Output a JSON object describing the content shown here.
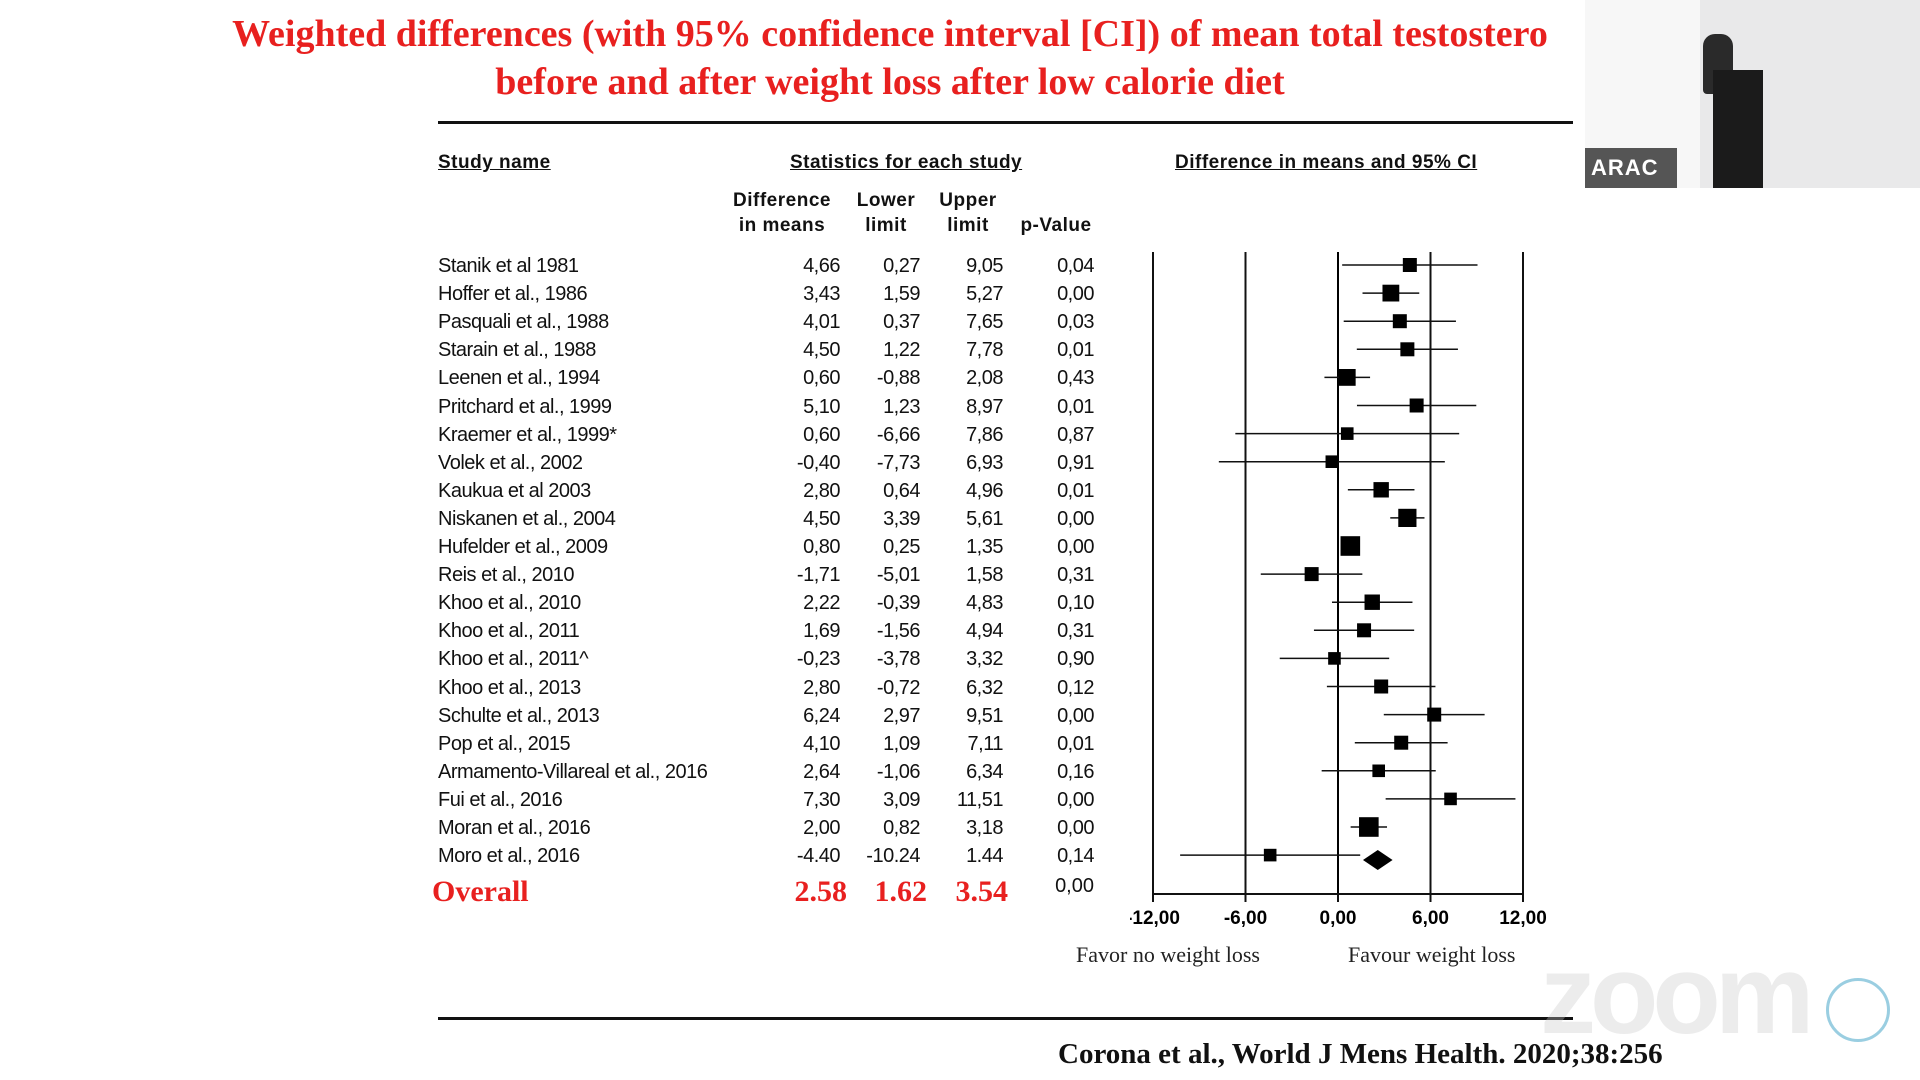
{
  "title_line1": "Weighted differences (with 95% confidence interval [CI]) of mean total testostero",
  "title_line2": "before and after weight loss after low calorie diet",
  "headers": {
    "study_name": "Study name",
    "statistics": "Statistics for each study",
    "plot": "Difference in means and 95% CI",
    "diff": "Difference\nin means",
    "lower": "Lower\nlimit",
    "upper": "Upper\nlimit",
    "pvalue": "p-Value"
  },
  "overall": {
    "label": "Overall",
    "diff": "2.58",
    "lower": "1.62",
    "upper": "3.54",
    "p": "0,00"
  },
  "favor_left": "Favor no weight loss",
  "favor_right": "Favour weight loss",
  "citation": "Corona et al., World J Mens Health. 2020;38:256",
  "thumbnail_label": "ARAC",
  "watermark": "zoom",
  "colors": {
    "title": "#e8201f",
    "overall": "#e8201f",
    "marker": "#000000"
  },
  "chart_data": {
    "type": "forest",
    "xlim": [
      -12,
      12
    ],
    "xticks": [
      "-12,00",
      "-6,00",
      "0,00",
      "6,00",
      "12,00"
    ],
    "studies": [
      {
        "name": "Stanik et al 1981",
        "diff": "4,66",
        "lower": "0,27",
        "upper": "9,05",
        "p": "0,04",
        "d": 4.66,
        "l": 0.27,
        "u": 9.05,
        "w": 1.0
      },
      {
        "name": "Hoffer et al., 1986",
        "diff": "3,43",
        "lower": "1,59",
        "upper": "5,27",
        "p": "0,00",
        "d": 3.43,
        "l": 1.59,
        "u": 5.27,
        "w": 1.2
      },
      {
        "name": "Pasquali et al., 1988",
        "diff": "4,01",
        "lower": "0,37",
        "upper": "7,65",
        "p": "0,03",
        "d": 4.01,
        "l": 0.37,
        "u": 7.65,
        "w": 1.0
      },
      {
        "name": "Starain et al., 1988",
        "diff": "4,50",
        "lower": "1,22",
        "upper": "7,78",
        "p": "0,01",
        "d": 4.5,
        "l": 1.22,
        "u": 7.78,
        "w": 1.0
      },
      {
        "name": "Leenen et al., 1994",
        "diff": "0,60",
        "lower": "-0,88",
        "upper": "2,08",
        "p": "0,43",
        "d": 0.6,
        "l": -0.88,
        "u": 2.08,
        "w": 1.2
      },
      {
        "name": "Pritchard et al., 1999",
        "diff": "5,10",
        "lower": "1,23",
        "upper": "8,97",
        "p": "0,01",
        "d": 5.1,
        "l": 1.23,
        "u": 8.97,
        "w": 1.0
      },
      {
        "name": "Kraemer  et al., 1999*",
        "diff": "0,60",
        "lower": "-6,66",
        "upper": "7,86",
        "p": "0,87",
        "d": 0.6,
        "l": -6.66,
        "u": 7.86,
        "w": 0.9
      },
      {
        "name": "Volek et al., 2002",
        "diff": "-0,40",
        "lower": "-7,73",
        "upper": "6,93",
        "p": "0,91",
        "d": -0.4,
        "l": -7.73,
        "u": 6.93,
        "w": 0.9
      },
      {
        "name": "Kaukua et al 2003",
        "diff": "2,80",
        "lower": "0,64",
        "upper": "4,96",
        "p": "0,01",
        "d": 2.8,
        "l": 0.64,
        "u": 4.96,
        "w": 1.1
      },
      {
        "name": "Niskanen et al., 2004",
        "diff": "4,50",
        "lower": "3,39",
        "upper": "5,61",
        "p": "0,00",
        "d": 4.5,
        "l": 3.39,
        "u": 5.61,
        "w": 1.3
      },
      {
        "name": "Hufelder et al., 2009",
        "diff": "0,80",
        "lower": "0,25",
        "upper": "1,35",
        "p": "0,00",
        "d": 0.8,
        "l": 0.25,
        "u": 1.35,
        "w": 1.4
      },
      {
        "name": "Reis et al., 2010",
        "diff": "-1,71",
        "lower": "-5,01",
        "upper": "1,58",
        "p": "0,31",
        "d": -1.71,
        "l": -5.01,
        "u": 1.58,
        "w": 1.0
      },
      {
        "name": "Khoo et al., 2010",
        "diff": "2,22",
        "lower": "-0,39",
        "upper": "4,83",
        "p": "0,10",
        "d": 2.22,
        "l": -0.39,
        "u": 4.83,
        "w": 1.1
      },
      {
        "name": "Khoo et al., 2011",
        "diff": "1,69",
        "lower": "-1,56",
        "upper": "4,94",
        "p": "0,31",
        "d": 1.69,
        "l": -1.56,
        "u": 4.94,
        "w": 1.0
      },
      {
        "name": "Khoo et al., 2011^",
        "diff": "-0,23",
        "lower": "-3,78",
        "upper": "3,32",
        "p": "0,90",
        "d": -0.23,
        "l": -3.78,
        "u": 3.32,
        "w": 0.9
      },
      {
        "name": "Khoo et al., 2013",
        "diff": "2,80",
        "lower": "-0,72",
        "upper": "6,32",
        "p": "0,12",
        "d": 2.8,
        "l": -0.72,
        "u": 6.32,
        "w": 1.0
      },
      {
        "name": "Schulte et al., 2013",
        "diff": "6,24",
        "lower": "2,97",
        "upper": "9,51",
        "p": "0,00",
        "d": 6.24,
        "l": 2.97,
        "u": 9.51,
        "w": 1.0
      },
      {
        "name": "Pop et al., 2015",
        "diff": "4,10",
        "lower": "1,09",
        "upper": "7,11",
        "p": "0,01",
        "d": 4.1,
        "l": 1.09,
        "u": 7.11,
        "w": 1.0
      },
      {
        "name": "Armamento-Villareal et al., 2016",
        "diff": "2,64",
        "lower": "-1,06",
        "upper": "6,34",
        "p": "0,16",
        "d": 2.64,
        "l": -1.06,
        "u": 6.34,
        "w": 0.9
      },
      {
        "name": "Fui et al., 2016",
        "diff": "7,30",
        "lower": "3,09",
        "upper": "11,51",
        "p": "0,00",
        "d": 7.3,
        "l": 3.09,
        "u": 11.51,
        "w": 0.9
      },
      {
        "name": "Moran et al., 2016",
        "diff": "2,00",
        "lower": "0,82",
        "upper": "3,18",
        "p": "0,00",
        "d": 2.0,
        "l": 0.82,
        "u": 3.18,
        "w": 1.4
      },
      {
        "name": "Moro et al., 2016",
        "diff": "-4.40",
        "lower": "-10.24",
        "upper": "1.44",
        "p": "0,14",
        "d": -4.4,
        "l": -10.24,
        "u": 1.44,
        "w": 0.9
      }
    ],
    "overall": {
      "d": 2.58,
      "l": 1.62,
      "u": 3.54
    }
  }
}
